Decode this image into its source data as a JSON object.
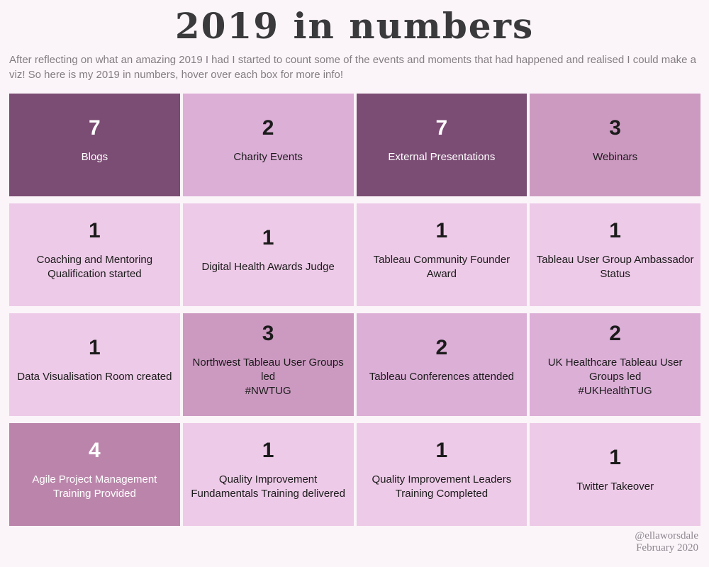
{
  "page": {
    "title": "2019 in numbers",
    "subtitle": "After reflecting on what an amazing 2019 I had I started to count some of the events and moments that had happened and realised I could make a viz! So here is my 2019 in numbers, hover over each box for more info!",
    "credit_handle": "@ellaworsdale",
    "credit_date": "February 2020"
  },
  "colors": {
    "page_background": "#fbf5f9",
    "title_text": "#3a393b",
    "subtitle_text": "#847d82",
    "credit_text": "#8e8790",
    "value_scale": {
      "1": "#edcae7",
      "2": "#dcafd7",
      "3": "#cc9ac1",
      "4": "#bb85ab",
      "7": "#7b4c74"
    },
    "light_text": "#ffffff",
    "dark_text": "#1b1b1b"
  },
  "chart_data": {
    "type": "table",
    "title": "2019 in numbers",
    "layout": {
      "rows": 4,
      "cols": 4,
      "legend": "none",
      "note": "tile shade encodes value; darker = higher count"
    },
    "tiles": [
      {
        "value": 7,
        "label": "Blogs",
        "bg": "#7b4c74",
        "fg": "#ffffff"
      },
      {
        "value": 2,
        "label": "Charity Events",
        "bg": "#dcafd7",
        "fg": "#1b1b1b"
      },
      {
        "value": 7,
        "label": "External Presentations",
        "bg": "#7b4c74",
        "fg": "#ffffff"
      },
      {
        "value": 3,
        "label": "Webinars",
        "bg": "#cc9ac1",
        "fg": "#1b1b1b"
      },
      {
        "value": 1,
        "label": "Coaching and Mentoring Qualification started",
        "bg": "#edcae7",
        "fg": "#1b1b1b"
      },
      {
        "value": 1,
        "label": "Digital Health Awards Judge",
        "bg": "#edcae7",
        "fg": "#1b1b1b"
      },
      {
        "value": 1,
        "label": "Tableau Community Founder Award",
        "bg": "#edcae7",
        "fg": "#1b1b1b"
      },
      {
        "value": 1,
        "label": "Tableau User Group Ambassador Status",
        "bg": "#edcae7",
        "fg": "#1b1b1b"
      },
      {
        "value": 1,
        "label": "Data Visualisation Room created",
        "bg": "#edcae7",
        "fg": "#1b1b1b"
      },
      {
        "value": 3,
        "label": "Northwest Tableau User Groups led\n#NWTUG",
        "bg": "#cc9ac1",
        "fg": "#1b1b1b"
      },
      {
        "value": 2,
        "label": "Tableau Conferences attended",
        "bg": "#dcafd7",
        "fg": "#1b1b1b"
      },
      {
        "value": 2,
        "label": "UK Healthcare Tableau User Groups led\n#UKHealthTUG",
        "bg": "#dcafd7",
        "fg": "#1b1b1b"
      },
      {
        "value": 4,
        "label": "Agile Project Management Training Provided",
        "bg": "#bb85ab",
        "fg": "#ffffff"
      },
      {
        "value": 1,
        "label": "Quality Improvement Fundamentals Training delivered",
        "bg": "#edcae7",
        "fg": "#1b1b1b"
      },
      {
        "value": 1,
        "label": "Quality Improvement Leaders Training Completed",
        "bg": "#edcae7",
        "fg": "#1b1b1b"
      },
      {
        "value": 1,
        "label": "Twitter Takeover",
        "bg": "#edcae7",
        "fg": "#1b1b1b"
      }
    ]
  }
}
